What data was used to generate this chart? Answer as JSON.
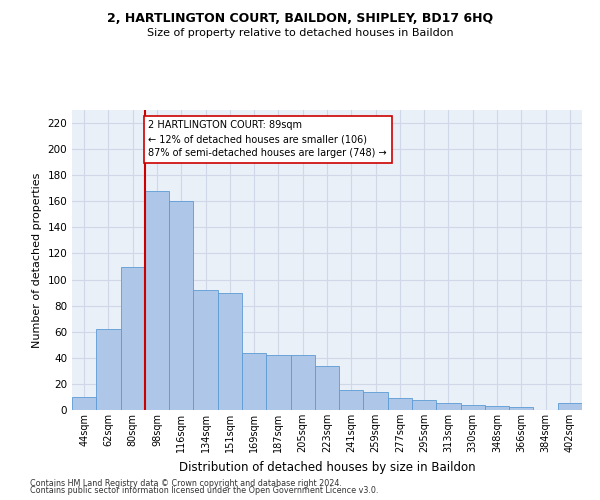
{
  "title1": "2, HARTLINGTON COURT, BAILDON, SHIPLEY, BD17 6HQ",
  "title2": "Size of property relative to detached houses in Baildon",
  "xlabel": "Distribution of detached houses by size in Baildon",
  "ylabel": "Number of detached properties",
  "categories": [
    "44sqm",
    "62sqm",
    "80sqm",
    "98sqm",
    "116sqm",
    "134sqm",
    "151sqm",
    "169sqm",
    "187sqm",
    "205sqm",
    "223sqm",
    "241sqm",
    "259sqm",
    "277sqm",
    "295sqm",
    "313sqm",
    "330sqm",
    "348sqm",
    "366sqm",
    "384sqm",
    "402sqm"
  ],
  "values": [
    10,
    62,
    110,
    168,
    160,
    92,
    90,
    44,
    42,
    42,
    34,
    15,
    14,
    9,
    8,
    5,
    4,
    3,
    2,
    0,
    5
  ],
  "bar_color": "#aec6e8",
  "bar_edge_color": "#5b9bd5",
  "grid_color": "#d0d8e8",
  "background_color": "#eaf0f8",
  "vline_x_index": 2.5,
  "vline_color": "#cc0000",
  "annotation_text": "2 HARTLINGTON COURT: 89sqm\n← 12% of detached houses are smaller (106)\n87% of semi-detached houses are larger (748) →",
  "annotation_box_color": "#ffffff",
  "annotation_box_edge": "#cc0000",
  "ylim": [
    0,
    230
  ],
  "yticks": [
    0,
    20,
    40,
    60,
    80,
    100,
    120,
    140,
    160,
    180,
    200,
    220
  ],
  "footnote1": "Contains HM Land Registry data © Crown copyright and database right 2024.",
  "footnote2": "Contains public sector information licensed under the Open Government Licence v3.0."
}
